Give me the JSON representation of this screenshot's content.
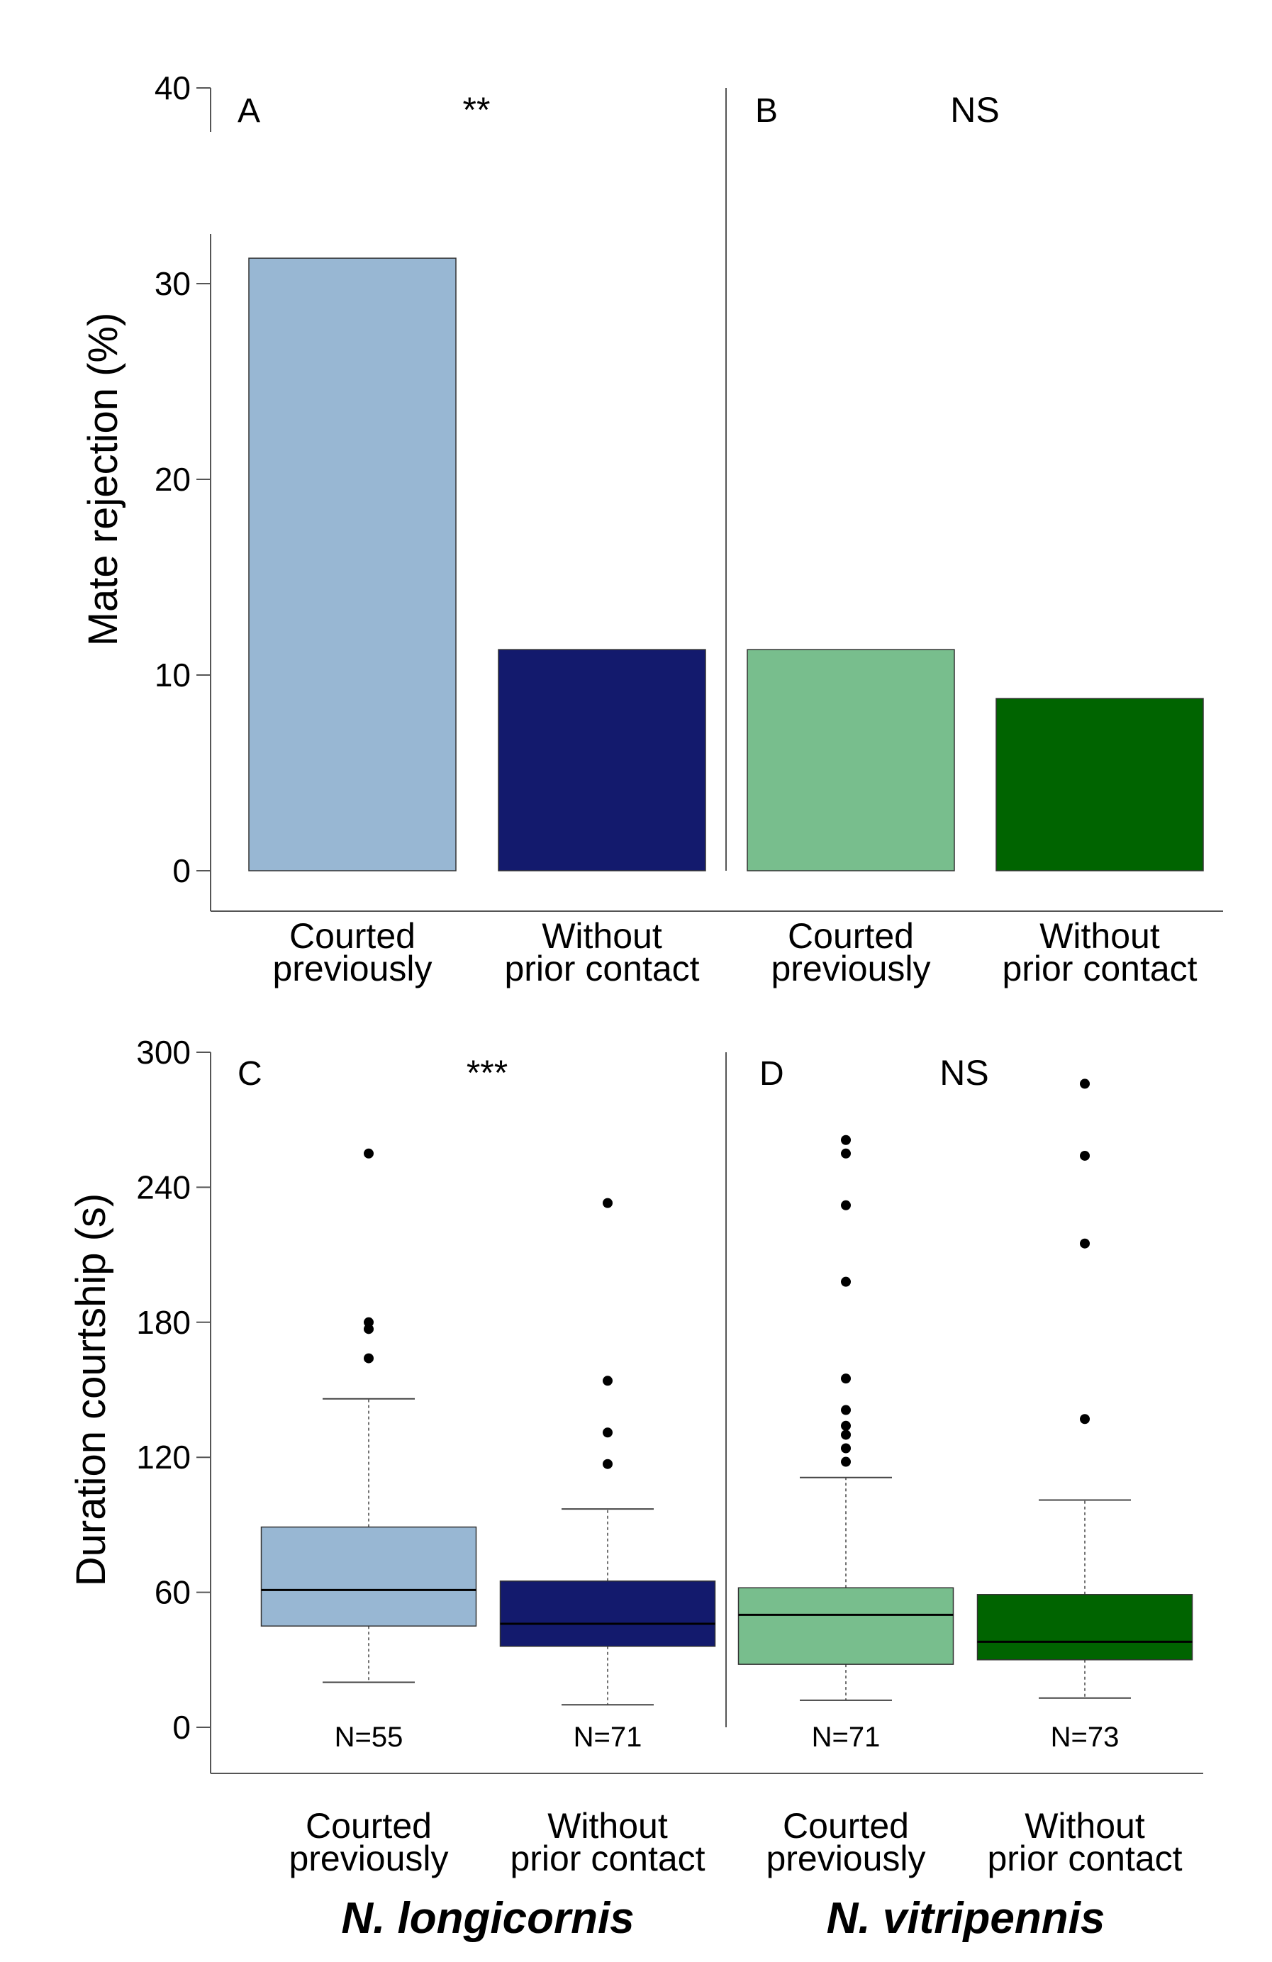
{
  "chart_data": [
    {
      "type": "bar",
      "ylabel": "Mate rejection (%)",
      "ylim": [
        0,
        40
      ],
      "yticks": [
        0,
        10,
        20,
        30,
        40
      ],
      "grid": false,
      "categories": [
        "Courted\npreviously",
        "Without\nprior contact",
        "Courted\npreviously",
        "Without\nprior contact"
      ],
      "values": [
        31.3,
        11.3,
        11.3,
        8.8
      ],
      "colors": [
        "#98b7d3",
        "#131a6d",
        "#78be8d",
        "#006400"
      ],
      "panels": [
        {
          "letter": "A",
          "significance": "**",
          "species": "N. longicornis"
        },
        {
          "letter": "B",
          "significance": "NS",
          "species": "N. vitripennis"
        }
      ]
    },
    {
      "type": "box",
      "ylabel": "Duration courtship (s)",
      "ylim": [
        0,
        300
      ],
      "yticks": [
        0,
        60,
        120,
        180,
        240,
        300
      ],
      "grid": false,
      "categories": [
        "Courted\npreviously",
        "Without\nprior contact",
        "Courted\npreviously",
        "Without\nprior contact"
      ],
      "boxes": [
        {
          "label": "N=55",
          "whisker_low": 20,
          "q1": 45,
          "median": 61,
          "q3": 89,
          "whisker_high": 146,
          "outliers": [
            164,
            177,
            180,
            255
          ],
          "color": "#98b7d3"
        },
        {
          "label": "N=71",
          "whisker_low": 10,
          "q1": 36,
          "median": 46,
          "q3": 65,
          "whisker_high": 97,
          "outliers": [
            117,
            131,
            154,
            233
          ],
          "color": "#131a6d"
        },
        {
          "label": "N=71",
          "whisker_low": 12,
          "q1": 28,
          "median": 50,
          "q3": 62,
          "whisker_high": 111,
          "outliers": [
            118,
            124,
            130,
            134,
            141,
            155,
            198,
            232,
            255,
            261
          ],
          "color": "#78be8d"
        },
        {
          "label": "N=73",
          "whisker_low": 13,
          "q1": 30,
          "median": 38,
          "q3": 59,
          "whisker_high": 101,
          "outliers": [
            137,
            215,
            254,
            286
          ],
          "color": "#006400"
        }
      ],
      "panels": [
        {
          "letter": "C",
          "significance": "***",
          "species": "N. longicornis"
        },
        {
          "letter": "D",
          "significance": "NS",
          "species": "N. vitripennis"
        }
      ]
    }
  ]
}
